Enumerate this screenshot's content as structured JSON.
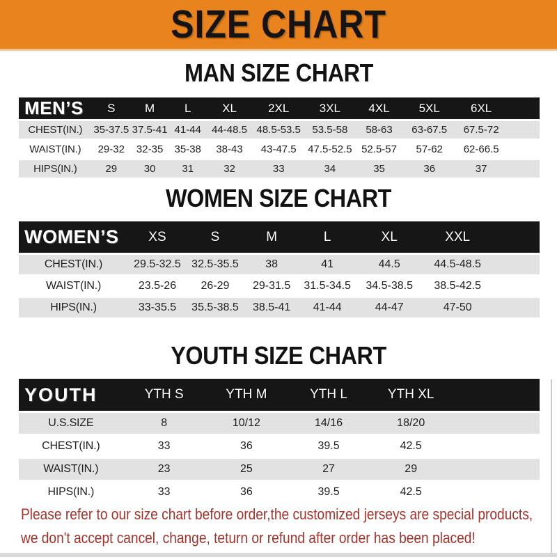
{
  "banner": {
    "title": "SIZE CHART"
  },
  "colors": {
    "banner_bg": "#E8831E",
    "bar_bg": "#161616",
    "stripe": "#E2E2E2",
    "disclaimer_red": "#A5322B"
  },
  "sections": {
    "men": {
      "heading": "MAN SIZE CHART",
      "corner_label": "MEN’S",
      "columns": [
        "S",
        "M",
        "L",
        "XL",
        "2XL",
        "3XL",
        "4XL",
        "5XL",
        "6XL"
      ],
      "rows": [
        {
          "label": "CHEST(IN.)",
          "values": [
            "35-37.5",
            "37.5-41",
            "41-44",
            "44-48.5",
            "48.5-53.5",
            "53.5-58",
            "58-63",
            "63-67.5",
            "67.5-72"
          ]
        },
        {
          "label": "WAIST(IN.)",
          "values": [
            "29-32",
            "32-35",
            "35-38",
            "38-43",
            "43-47.5",
            "47.5-52.5",
            "52.5-57",
            "57-62",
            "62-66.5"
          ]
        },
        {
          "label": "HIPS(IN.)",
          "values": [
            "29",
            "30",
            "31",
            "32",
            "33",
            "34",
            "35",
            "36",
            "37"
          ]
        }
      ]
    },
    "women": {
      "heading": "WOMEN SIZE CHART",
      "corner_label": "WOMEN’S",
      "columns": [
        "XS",
        "S",
        "M",
        "L",
        "XL",
        "XXL"
      ],
      "rows": [
        {
          "label": "CHEST(IN.)",
          "values": [
            "29.5-32.5",
            "32.5-35.5",
            "38",
            "41",
            "44.5",
            "44.5-48.5"
          ]
        },
        {
          "label": "WAIST(IN.)",
          "values": [
            "23.5-26",
            "26-29",
            "29-31.5",
            "31.5-34.5",
            "34.5-38.5",
            "38.5-42.5"
          ]
        },
        {
          "label": "HIPS(IN.)",
          "values": [
            "33-35.5",
            "35.5-38.5",
            "38.5-41",
            "41-44",
            "44-47",
            "47-50"
          ]
        }
      ]
    },
    "youth": {
      "heading": "YOUTH SIZE CHART",
      "corner_label": "YOUTH",
      "columns": [
        "YTH S",
        "YTH M",
        "YTH L",
        "YTH XL"
      ],
      "rows": [
        {
          "label": "U.S.SIZE",
          "values": [
            "8",
            "10/12",
            "14/16",
            "18/20"
          ]
        },
        {
          "label": "CHEST(IN.)",
          "values": [
            "33",
            "36",
            "39.5",
            "42.5"
          ]
        },
        {
          "label": "WAIST(IN.)",
          "values": [
            "23",
            "25",
            "27",
            "29"
          ]
        },
        {
          "label": "HIPS(IN.)",
          "values": [
            "33",
            "36",
            "39.5",
            "42.5"
          ]
        }
      ]
    }
  },
  "disclaimer": {
    "line1": "Please refer to our size chart before order,the customized jerseys are special products,",
    "line2": "we don't accept cancel, change, teturn or refund after order has been placed!"
  }
}
